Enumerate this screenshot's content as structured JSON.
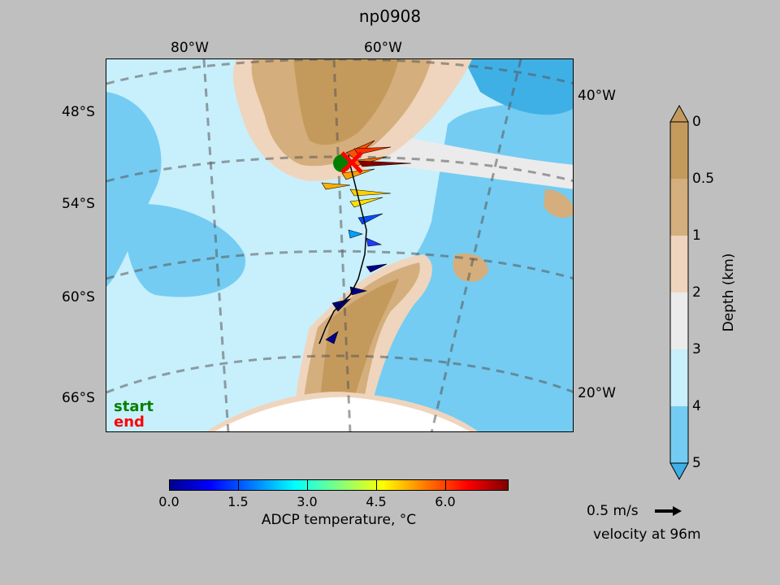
{
  "title": "np0908",
  "map": {
    "top_lon_labels": [
      "80°W",
      "60°W"
    ],
    "right_lon_labels": [
      "40°W",
      "20°W"
    ],
    "lat_labels": [
      "48°S",
      "54°S",
      "60°S",
      "66°S"
    ],
    "legend": {
      "start": "start",
      "end": "end"
    },
    "start_color": "#008000",
    "end_color": "#ff0000"
  },
  "temperature_colorbar": {
    "label": "ADCP temperature, °C",
    "ticks": [
      "0.0",
      "1.5",
      "3.0",
      "4.5",
      "6.0"
    ],
    "colormap": "jet",
    "range": [
      0,
      7.4
    ]
  },
  "depth_colorbar": {
    "label": "Depth (km)",
    "ticks": [
      "0",
      "0.5",
      "1",
      "2",
      "3",
      "4",
      "5"
    ],
    "colors": [
      "#c49a5c",
      "#d4ae7c",
      "#efd5bd",
      "#ebebeb",
      "#c8effc",
      "#74ccf2",
      "#3fb0e6"
    ]
  },
  "velocity_key": {
    "speed": "0.5 m/s",
    "depth_text": "velocity at 96m"
  }
}
